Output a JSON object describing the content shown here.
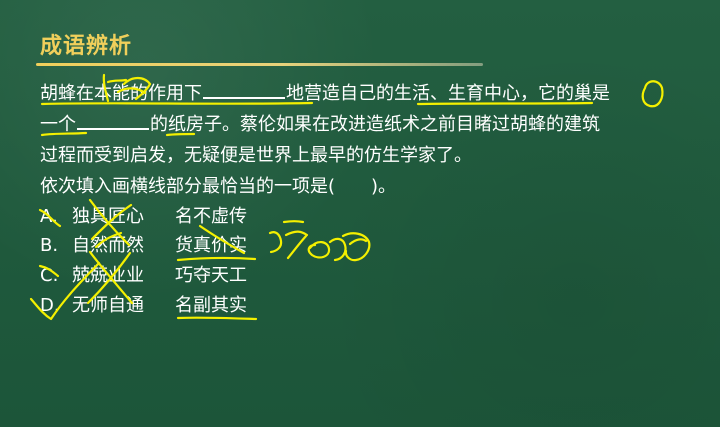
{
  "title": "成语辨析",
  "question": {
    "line1_part1": "胡蜂在本能的作用下",
    "line1_part2": "地营造自己的生活、生育中心，它的巢是",
    "line2_part1": "一个",
    "line2_part2": "的纸房子。蔡伦如果在改进造纸术之前目睹过胡蜂的建筑",
    "line3": "过程而受到启发，无疑便是世界上最早的仿生学家了。",
    "line4": "依次填入画横线部分最恰当的一项是(　　)。"
  },
  "options": [
    {
      "letter": "A.",
      "word1": "独具匠心",
      "word2": "名不虚传"
    },
    {
      "letter": "B.",
      "word1": "自然而然",
      "word2": "货真价实"
    },
    {
      "letter": "C.",
      "word1": "兢兢业业",
      "word2": "巧夺天工"
    },
    {
      "letter": "D.",
      "word1": "无师自通",
      "word2": "名副其实"
    }
  ],
  "colors": {
    "background": "#1f5a3d",
    "title": "#f0cf5b",
    "text": "#ffffff",
    "annotation": "#f4f000"
  }
}
